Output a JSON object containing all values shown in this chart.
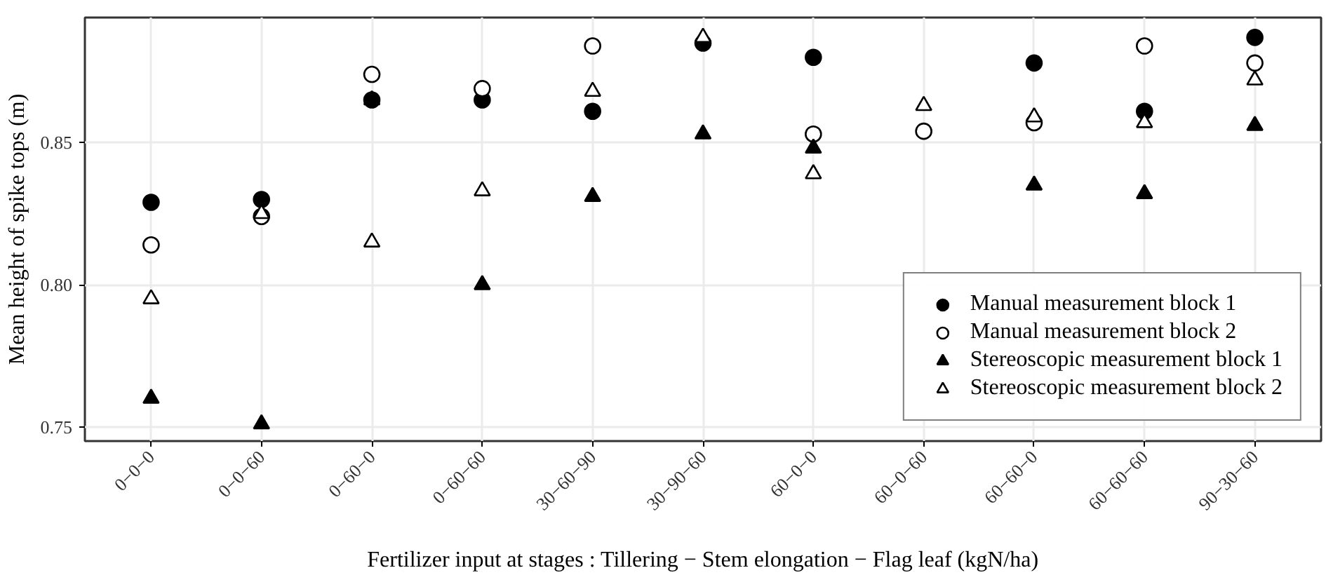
{
  "chart_data": {
    "type": "scatter",
    "xlabel": "Fertilizer input at stages : Tillering − Stem elongation − Flag leaf (kgN/ha)",
    "ylabel": "Mean height of spike tops (m)",
    "categories": [
      "0−0−0",
      "0−0−60",
      "0−60−0",
      "0−60−60",
      "30−60−90",
      "30−90−60",
      "60−0−0",
      "60−0−60",
      "60−60−0",
      "60−60−60",
      "90−30−60"
    ],
    "series": [
      {
        "name": "Manual measurement block 1",
        "color": "#000000",
        "marker": "circle",
        "values": [
          0.829,
          0.83,
          0.865,
          0.865,
          0.861,
          0.885,
          0.88,
          null,
          0.878,
          0.861,
          0.887
        ]
      },
      {
        "name": "Manual measurement block 2",
        "color": "#000000",
        "marker": "circle_open",
        "values": [
          0.814,
          0.824,
          0.874,
          0.869,
          0.884,
          null,
          0.853,
          0.854,
          0.857,
          0.884,
          0.878
        ]
      },
      {
        "name": "Stereoscopic measurement block 1",
        "color": "#000000",
        "marker": "triangle",
        "values": [
          0.76,
          0.751,
          0.865,
          0.8,
          0.831,
          0.853,
          0.848,
          null,
          0.835,
          0.832,
          0.856
        ]
      },
      {
        "name": "Stereoscopic measurement block 2",
        "color": "#000000",
        "marker": "triangle_open",
        "values": [
          0.795,
          0.825,
          0.815,
          0.833,
          0.868,
          0.887,
          0.839,
          0.863,
          0.859,
          0.857,
          0.872
        ]
      }
    ],
    "ylim": [
      0.745,
      0.894
    ],
    "yticks": [
      {
        "value": 0.75,
        "label": "0.75"
      },
      {
        "value": 0.8,
        "label": "0.80"
      },
      {
        "value": 0.85,
        "label": "0.85"
      }
    ],
    "grid": true,
    "legend": "bottom right"
  }
}
